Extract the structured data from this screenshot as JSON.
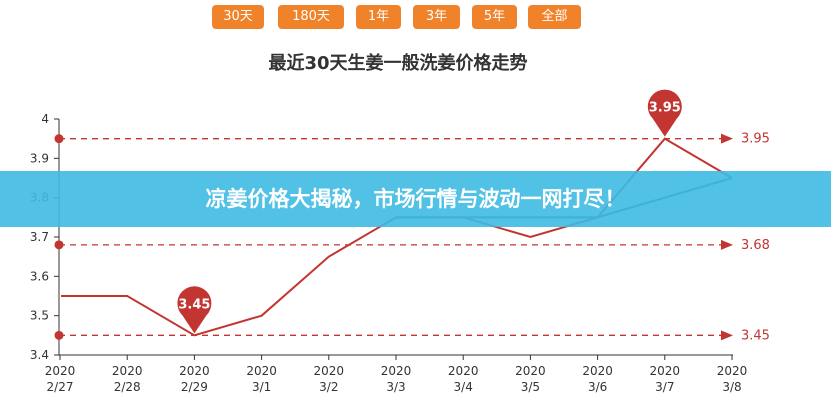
{
  "range_buttons": [
    "30天",
    "180天",
    "1年",
    "3年",
    "5年",
    "全部"
  ],
  "banner": {
    "text": "凉姜价格大揭秘，市场行情与波动一网打尽！"
  },
  "colors": {
    "button": "#f0822a",
    "line": "#c23531",
    "line_behind_banner": "#3a5d7a",
    "axis": "#333333",
    "banner": "#3ebae2"
  },
  "chart_data": {
    "type": "line",
    "title": "最近30天生姜一般洗姜价格走势",
    "x": [
      [
        "2020",
        "2/27"
      ],
      [
        "2020",
        "2/28"
      ],
      [
        "2020",
        "2/29"
      ],
      [
        "2020",
        "3/1"
      ],
      [
        "2020",
        "3/2"
      ],
      [
        "2020",
        "3/3"
      ],
      [
        "2020",
        "3/4"
      ],
      [
        "2020",
        "3/5"
      ],
      [
        "2020",
        "3/6"
      ],
      [
        "2020",
        "3/7"
      ],
      [
        "2020",
        "3/8"
      ]
    ],
    "x_positions": [
      0,
      1,
      2,
      3,
      4,
      5,
      6,
      7,
      8,
      9,
      10
    ],
    "y": [
      3.55,
      3.55,
      3.45,
      3.5,
      3.65,
      3.75,
      3.75,
      3.7,
      3.75,
      3.95,
      3.85
    ],
    "ylim": [
      3.4,
      4.0
    ],
    "yticks": [
      "3.4",
      "3.5",
      "3.6",
      "3.7",
      "3.8",
      "3.9",
      "4"
    ],
    "extent": {
      "x_first": -0.5,
      "x_last": 10
    },
    "max_label": {
      "index": 9,
      "value": "3.95"
    },
    "min_label": {
      "index": 2,
      "value": "3.45"
    },
    "mark_lines": [
      {
        "value": 3.95,
        "label": "3.95"
      },
      {
        "value": 3.68,
        "label": "3.68"
      },
      {
        "value": 3.45,
        "label": "3.45"
      }
    ],
    "grid": false,
    "legend": "none"
  }
}
